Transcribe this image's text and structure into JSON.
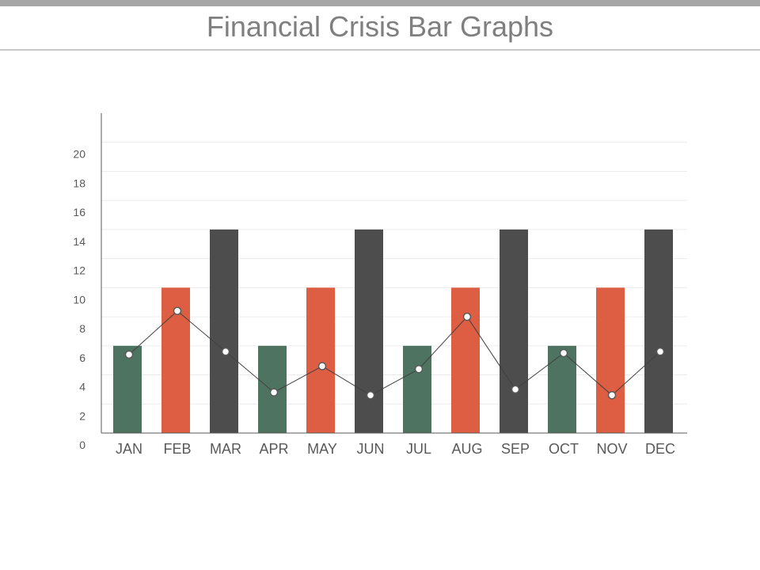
{
  "title": "Financial Crisis Bar Graphs",
  "chart_data": {
    "type": "bar",
    "categories": [
      "JAN",
      "FEB",
      "MAR",
      "APR",
      "MAY",
      "JUN",
      "JUL",
      "AUG",
      "SEP",
      "OCT",
      "NOV",
      "DEC"
    ],
    "series": [
      {
        "values": [
          6,
          10,
          14,
          6,
          10,
          14,
          6,
          10,
          14,
          6,
          10,
          14
        ],
        "colors": [
          "#4e7360",
          "#dd5e42",
          "#4d4d4d",
          "#4e7360",
          "#dd5e42",
          "#4d4d4d",
          "#4e7360",
          "#dd5e42",
          "#4d4d4d",
          "#4e7360",
          "#dd5e42",
          "#4d4d4d"
        ]
      },
      {
        "type": "line",
        "values": [
          5.4,
          8.4,
          5.6,
          2.8,
          4.6,
          2.6,
          4.4,
          8.0,
          3.0,
          5.5,
          2.6,
          5.6
        ],
        "color": "#404040"
      }
    ],
    "yticks": [
      "0",
      "2",
      "4",
      "6",
      "8",
      "10",
      "12",
      "14",
      "16",
      "18",
      "20"
    ],
    "ylim": [
      0,
      22
    ],
    "grid": true,
    "legend": "none"
  }
}
